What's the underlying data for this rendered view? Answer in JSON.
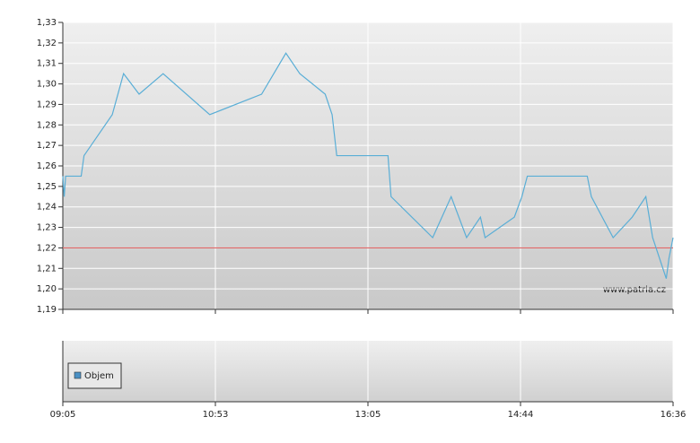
{
  "chart_data": {
    "type": "line",
    "x": [
      "09:05",
      "09:06",
      "09:07",
      "09:18",
      "09:20",
      "09:40",
      "09:48",
      "09:59",
      "10:16",
      "10:49",
      "11:33",
      "11:54",
      "12:06",
      "12:28",
      "12:34",
      "12:38",
      "13:18",
      "13:20",
      "13:47",
      "13:59",
      "14:09",
      "14:18",
      "14:21",
      "14:40",
      "14:45",
      "14:49",
      "15:33",
      "15:36",
      "15:52",
      "16:06",
      "16:16",
      "16:21",
      "16:31",
      "16:33",
      "16:36"
    ],
    "series": [
      {
        "color": "#5aaed6",
        "values": [
          1.255,
          1.245,
          1.255,
          1.255,
          1.265,
          1.285,
          1.305,
          1.295,
          1.305,
          1.285,
          1.295,
          1.315,
          1.305,
          1.295,
          1.285,
          1.265,
          1.265,
          1.245,
          1.225,
          1.245,
          1.225,
          1.235,
          1.225,
          1.235,
          1.245,
          1.255,
          1.255,
          1.245,
          1.225,
          1.235,
          1.245,
          1.225,
          1.205,
          1.215,
          1.225
        ]
      }
    ],
    "reference_line": {
      "value": 1.22,
      "color": "#e06666"
    },
    "ylim": [
      1.19,
      1.33
    ],
    "yticks": [
      {
        "value": 1.19,
        "label": "1,19"
      },
      {
        "value": 1.2,
        "label": "1,20"
      },
      {
        "value": 1.21,
        "label": "1,21"
      },
      {
        "value": 1.22,
        "label": "1,22"
      },
      {
        "value": 1.23,
        "label": "1,23"
      },
      {
        "value": 1.24,
        "label": "1,24"
      },
      {
        "value": 1.25,
        "label": "1,25"
      },
      {
        "value": 1.26,
        "label": "1,26"
      },
      {
        "value": 1.27,
        "label": "1,27"
      },
      {
        "value": 1.28,
        "label": "1,28"
      },
      {
        "value": 1.29,
        "label": "1,29"
      },
      {
        "value": 1.3,
        "label": "1,30"
      },
      {
        "value": 1.31,
        "label": "1,31"
      },
      {
        "value": 1.32,
        "label": "1,32"
      },
      {
        "value": 1.33,
        "label": "1,33"
      }
    ],
    "xlim": [
      "09:05",
      "16:36"
    ],
    "xticks": [
      "09:05",
      "10:53",
      "13:05",
      "14:44",
      "16:36"
    ],
    "grid": true,
    "watermark": "www.patria.cz",
    "volume_legend": {
      "name": "Objem",
      "color": "#4a90c4"
    }
  }
}
